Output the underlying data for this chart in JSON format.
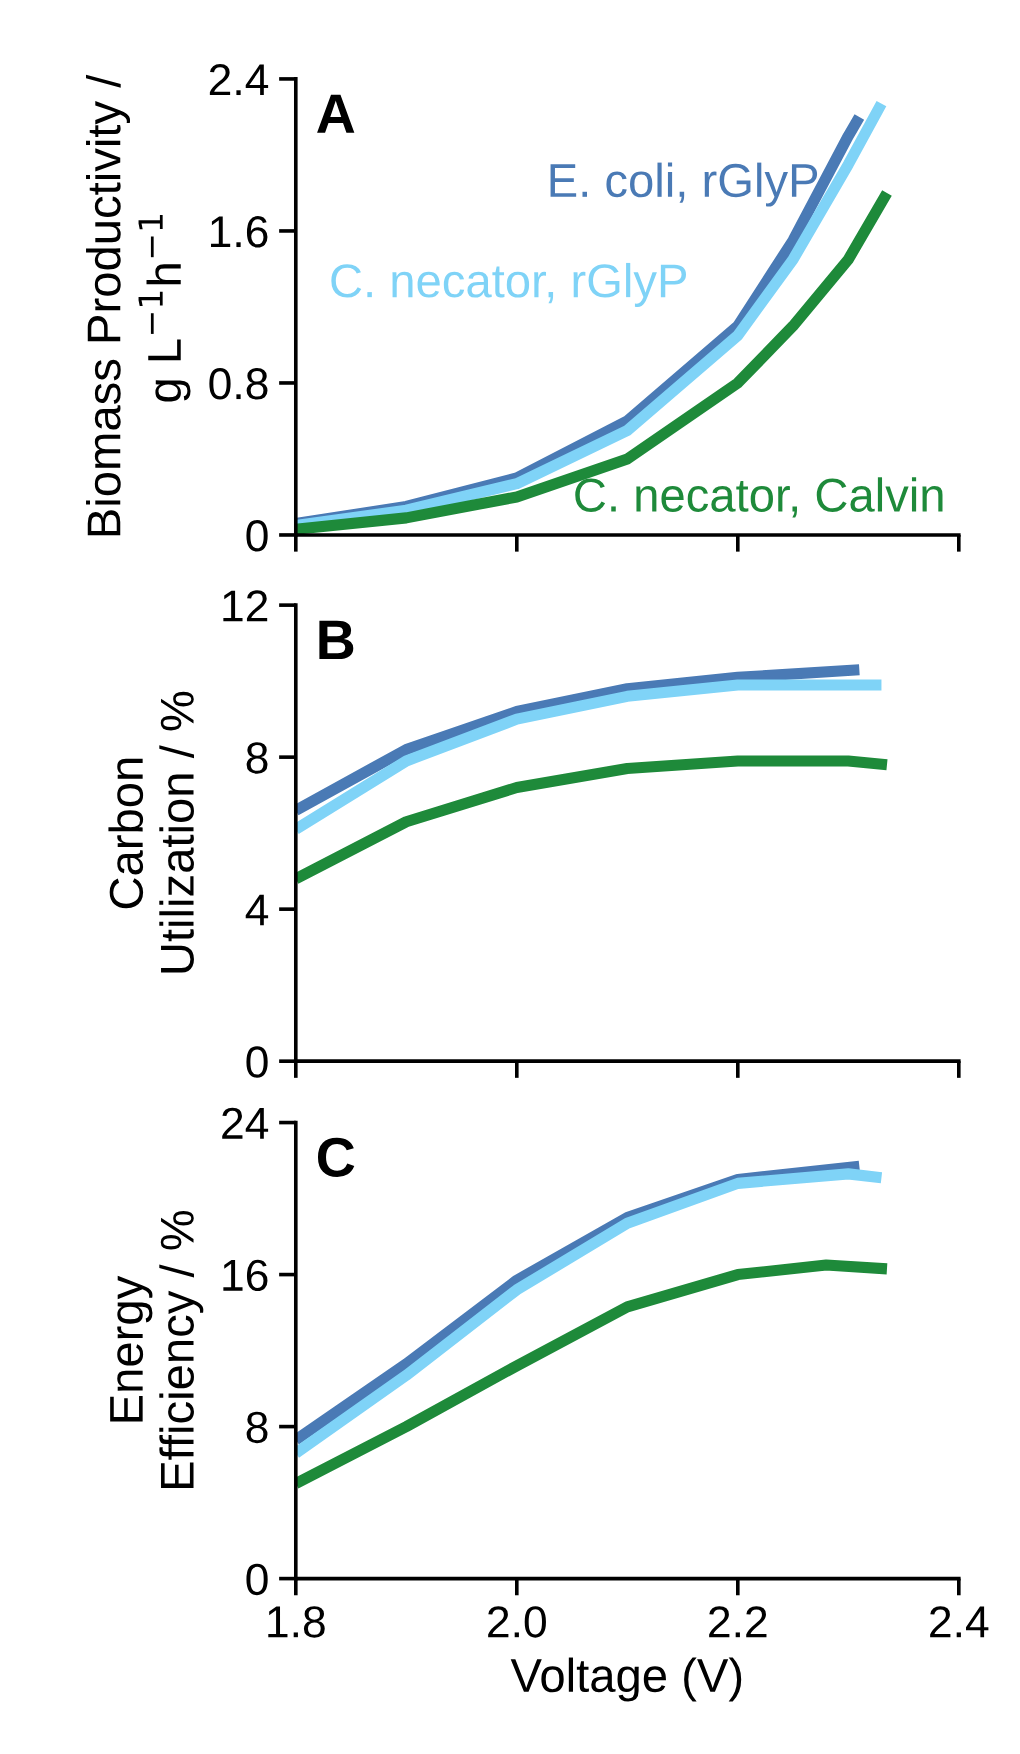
{
  "chart_data": [
    {
      "type": "line",
      "ylabel": "Biomass Productivity /\ng L$^{−1}$h$^{−1}$",
      "annotations": [
        "A"
      ],
      "xlim": [
        1.8,
        2.4
      ],
      "ylim": [
        0,
        2.4
      ],
      "yticks": [
        0,
        0.8,
        1.6,
        2.4
      ],
      "tick_labels": "y",
      "grid": false,
      "legend": false,
      "marker": "none",
      "line_style": "solid",
      "series": [
        {
          "name": "E. coli, rGlyP",
          "color": "#4a7ab5",
          "x": [
            1.8,
            1.9,
            2.0,
            2.1,
            2.2,
            2.25,
            2.3,
            2.31
          ],
          "values": [
            0.06,
            0.15,
            0.3,
            0.6,
            1.1,
            1.55,
            2.1,
            2.2
          ]
        },
        {
          "name": "C. necator, rGlyP",
          "color": "#7fd3f7",
          "x": [
            1.8,
            1.9,
            2.0,
            2.1,
            2.2,
            2.25,
            2.3,
            2.33
          ],
          "values": [
            0.05,
            0.13,
            0.27,
            0.55,
            1.05,
            1.45,
            1.95,
            2.27
          ]
        },
        {
          "name": "C. necator, Calvin",
          "color": "#1e8a3a",
          "x": [
            1.8,
            1.9,
            2.0,
            2.1,
            2.2,
            2.25,
            2.3,
            2.335
          ],
          "values": [
            0.03,
            0.09,
            0.2,
            0.4,
            0.8,
            1.1,
            1.45,
            1.8
          ]
        }
      ]
    },
    {
      "type": "line",
      "ylabel": "Carbon\nUtilization / %",
      "annotations": [
        "B"
      ],
      "xlim": [
        1.8,
        2.4
      ],
      "ylim": [
        0,
        12
      ],
      "yticks": [
        0,
        4,
        8,
        12
      ],
      "tick_labels": "y",
      "grid": false,
      "legend": false,
      "marker": "none",
      "line_style": "solid",
      "series": [
        {
          "color": "#4a7ab5",
          "x": [
            1.8,
            1.9,
            2.0,
            2.1,
            2.2,
            2.31
          ],
          "values": [
            6.6,
            8.2,
            9.2,
            9.8,
            10.1,
            10.3
          ]
        },
        {
          "color": "#7fd3f7",
          "x": [
            1.8,
            1.9,
            2.0,
            2.1,
            2.2,
            2.3,
            2.33
          ],
          "values": [
            6.1,
            7.9,
            9.0,
            9.6,
            9.9,
            9.9,
            9.9
          ]
        },
        {
          "color": "#1e8a3a",
          "x": [
            1.8,
            1.9,
            2.0,
            2.1,
            2.2,
            2.3,
            2.335
          ],
          "values": [
            4.8,
            6.3,
            7.2,
            7.7,
            7.9,
            7.9,
            7.8
          ]
        }
      ]
    },
    {
      "type": "line",
      "xlabel": "Voltage (V)",
      "ylabel": "Energy\nEfficiency / %",
      "annotations": [
        "C"
      ],
      "xlim": [
        1.8,
        2.4
      ],
      "xticks": [
        1.8,
        {
          "value": 2.0,
          "label": "2.0"
        },
        2.2,
        2.4
      ],
      "ylim": [
        0,
        24
      ],
      "yticks": [
        0,
        8,
        16,
        24
      ],
      "grid": false,
      "legend": false,
      "marker": "none",
      "line_style": "solid",
      "series": [
        {
          "color": "#4a7ab5",
          "x": [
            1.8,
            1.9,
            2.0,
            2.1,
            2.2,
            2.31
          ],
          "values": [
            7.3,
            11.3,
            15.7,
            19.0,
            21.0,
            21.7
          ]
        },
        {
          "color": "#7fd3f7",
          "x": [
            1.8,
            1.9,
            2.0,
            2.1,
            2.2,
            2.3,
            2.33
          ],
          "values": [
            6.6,
            10.7,
            15.2,
            18.7,
            20.8,
            21.3,
            21.1
          ]
        },
        {
          "color": "#1e8a3a",
          "x": [
            1.8,
            1.9,
            2.0,
            2.1,
            2.2,
            2.28,
            2.335
          ],
          "values": [
            5.0,
            8.0,
            11.2,
            14.3,
            16.0,
            16.5,
            16.3
          ]
        }
      ]
    }
  ]
}
